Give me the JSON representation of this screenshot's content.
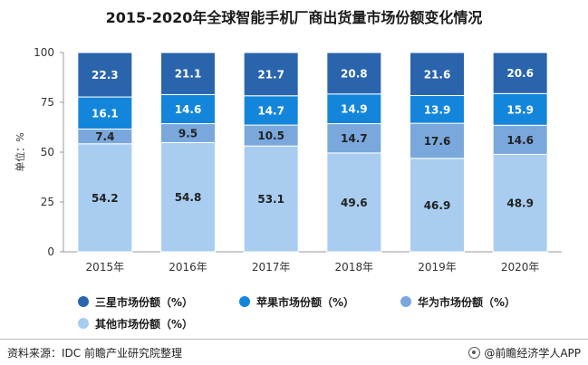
{
  "chart_data": {
    "type": "bar",
    "stacked": true,
    "title": "2015-2020年全球智能手机厂商出货量市场份额变化情况",
    "ylabel": "单位：%",
    "xlabel": "",
    "ylim": [
      0,
      100
    ],
    "yticks": [
      0,
      25,
      50,
      75,
      100
    ],
    "grid": false,
    "legend_position": "bottom",
    "categories": [
      "2015年",
      "2016年",
      "2017年",
      "2018年",
      "2019年",
      "2020年"
    ],
    "series": [
      {
        "name": "其他市场份额（%）",
        "color": "#a9cdf0",
        "values": [
          54.2,
          54.8,
          53.1,
          49.6,
          46.9,
          48.9
        ]
      },
      {
        "name": "华为市场份额（%）",
        "color": "#7aa8dc",
        "values": [
          7.4,
          9.5,
          10.5,
          14.7,
          17.6,
          14.6
        ]
      },
      {
        "name": "苹果市场份额（%）",
        "color": "#1386db",
        "values": [
          16.1,
          14.6,
          14.7,
          14.9,
          13.9,
          15.9
        ]
      },
      {
        "name": "三星市场份额（%）",
        "color": "#2a64ad",
        "values": [
          22.3,
          21.1,
          21.7,
          20.8,
          21.6,
          20.6
        ]
      }
    ],
    "legend_order": [
      3,
      2,
      1,
      0
    ]
  },
  "footer": {
    "source": "资料来源：IDC 前瞻产业研究院整理",
    "brand": "@前瞻经济学人APP"
  }
}
